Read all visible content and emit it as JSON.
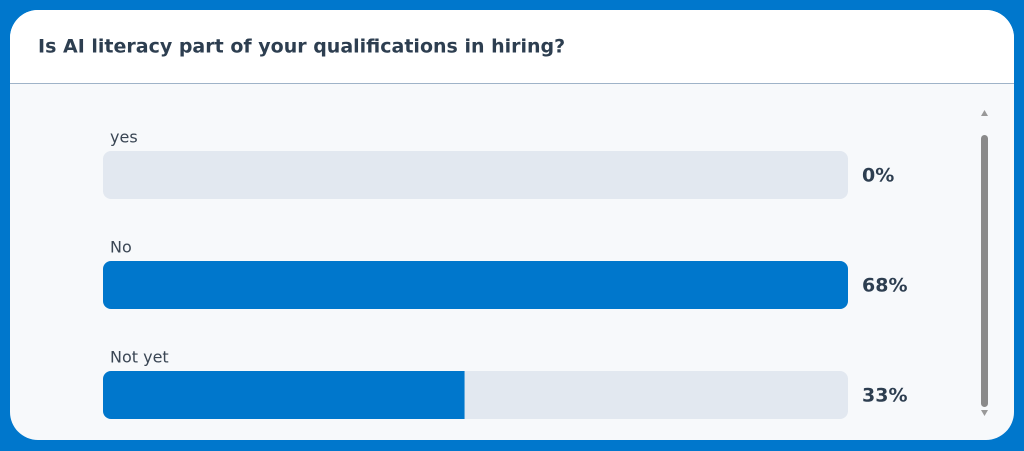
{
  "chart_data": {
    "type": "bar",
    "title": "Is AI literacy part of your qualifications in hiring?",
    "categories": [
      "yes",
      "No",
      "Not yet"
    ],
    "values": [
      0,
      68,
      33
    ],
    "value_labels": [
      "0%",
      "68%",
      "33%"
    ],
    "color": "#0077cc"
  }
}
